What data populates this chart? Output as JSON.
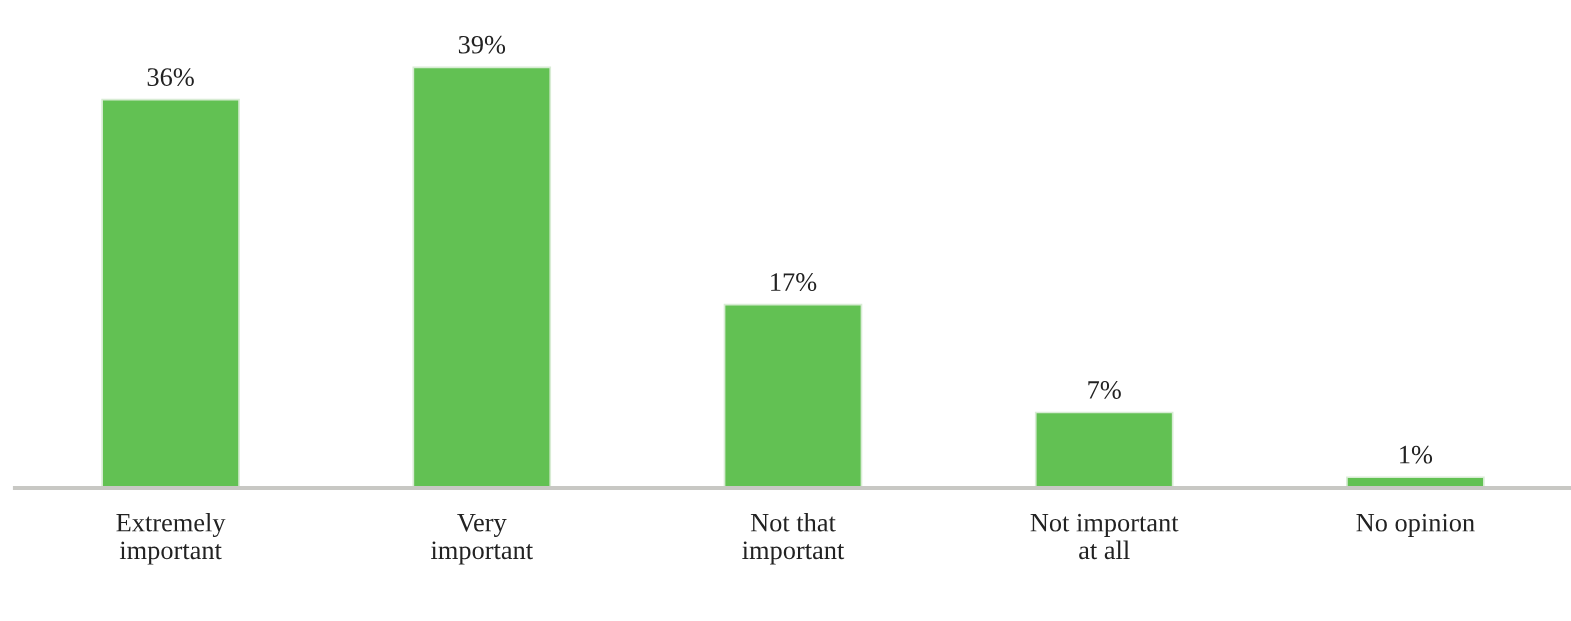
{
  "chart_data": {
    "type": "bar",
    "categories": [
      "Extremely\nimportant",
      "Very\nimportant",
      "Not that\nimportant",
      "Not important\nat all",
      "No opinion"
    ],
    "values": [
      36,
      39,
      17,
      7,
      1
    ],
    "value_labels": [
      "36%",
      "39%",
      "17%",
      "7%",
      "1%"
    ],
    "color": "#62c153",
    "grid": false,
    "legend": false
  }
}
